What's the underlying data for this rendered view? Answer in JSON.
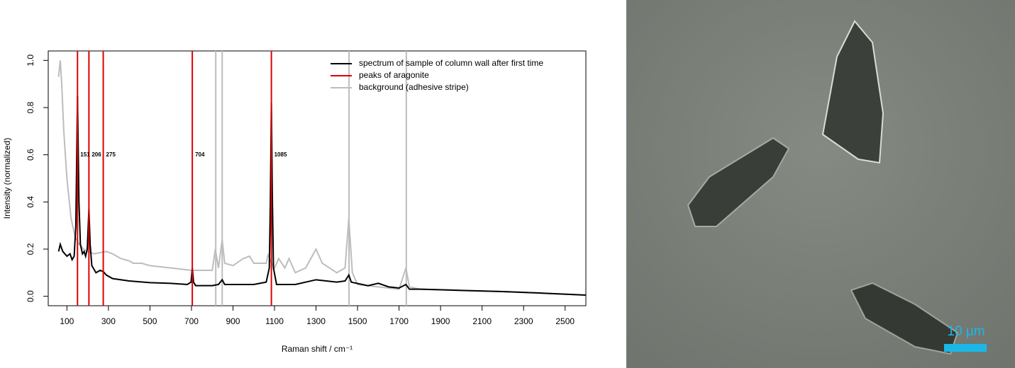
{
  "chart_data": {
    "type": "line",
    "xlabel": "Raman shift / cm⁻¹",
    "ylabel": "Intensity (normalized)",
    "xlim": [
      10,
      2600
    ],
    "ylim": [
      -0.04,
      1.04
    ],
    "xticks": [
      100,
      300,
      500,
      700,
      900,
      1100,
      1300,
      1500,
      1700,
      1900,
      2100,
      2300,
      2500
    ],
    "yticks": [
      {
        "value": 0,
        "label": "0.0"
      },
      0.2,
      0.4,
      0.6,
      0.8,
      {
        "value": 1,
        "label": "1.0"
      }
    ],
    "legend": "top-right",
    "series": [
      {
        "name": "spectrum of sample of column wall after first time",
        "color": "#000000",
        "x": [
          60,
          68,
          80,
          100,
          115,
          125,
          135,
          143,
          151,
          158,
          165,
          175,
          183,
          190,
          198,
          206,
          212,
          220,
          240,
          260,
          275,
          290,
          320,
          400,
          500,
          600,
          680,
          698,
          704,
          710,
          720,
          800,
          830,
          848,
          860,
          900,
          1000,
          1060,
          1075,
          1080,
          1085,
          1090,
          1095,
          1110,
          1200,
          1300,
          1400,
          1440,
          1458,
          1470,
          1550,
          1600,
          1650,
          1700,
          1733,
          1750,
          1800,
          2000,
          2200,
          2400,
          2600
        ],
        "values": [
          0.19,
          0.22,
          0.19,
          0.17,
          0.18,
          0.155,
          0.17,
          0.3,
          0.85,
          0.4,
          0.22,
          0.18,
          0.19,
          0.17,
          0.2,
          0.37,
          0.22,
          0.13,
          0.1,
          0.11,
          0.105,
          0.09,
          0.075,
          0.065,
          0.058,
          0.055,
          0.05,
          0.06,
          0.12,
          0.06,
          0.045,
          0.045,
          0.05,
          0.07,
          0.05,
          0.05,
          0.05,
          0.06,
          0.12,
          0.4,
          0.82,
          0.4,
          0.12,
          0.05,
          0.05,
          0.07,
          0.06,
          0.065,
          0.09,
          0.06,
          0.045,
          0.055,
          0.04,
          0.035,
          0.05,
          0.03,
          0.03,
          0.025,
          0.02,
          0.013,
          0.005
        ]
      },
      {
        "name": "peaks of aragonite",
        "color": "#e00000",
        "type": "vline",
        "x": [
          151,
          206,
          275,
          704,
          1085
        ],
        "label_y": 0.6
      },
      {
        "name": "background (adhesive stripe)",
        "color": "#bdbdbd",
        "x": [
          60,
          68,
          75,
          85,
          100,
          120,
          140,
          160,
          180,
          200,
          230,
          260,
          290,
          320,
          360,
          400,
          420,
          460,
          500,
          600,
          700,
          800,
          815,
          830,
          848,
          860,
          900,
          950,
          980,
          1000,
          1060,
          1070,
          1080,
          1100,
          1120,
          1150,
          1170,
          1200,
          1250,
          1300,
          1330,
          1400,
          1440,
          1458,
          1475,
          1500,
          1600,
          1700,
          1733,
          1750,
          1800,
          2000,
          2200,
          2400,
          2600
        ],
        "values": [
          0.93,
          1.0,
          0.9,
          0.7,
          0.5,
          0.33,
          0.25,
          0.22,
          0.2,
          0.19,
          0.18,
          0.185,
          0.19,
          0.18,
          0.16,
          0.15,
          0.14,
          0.14,
          0.13,
          0.12,
          0.11,
          0.11,
          0.2,
          0.12,
          0.24,
          0.14,
          0.13,
          0.16,
          0.17,
          0.14,
          0.14,
          0.18,
          0.15,
          0.12,
          0.16,
          0.12,
          0.16,
          0.1,
          0.12,
          0.2,
          0.14,
          0.1,
          0.12,
          0.33,
          0.1,
          0.05,
          0.04,
          0.03,
          0.12,
          0.04,
          0.03,
          0.025,
          0.02,
          0.013,
          0.005
        ],
        "peaks": [
          817,
          848,
          1459,
          1735
        ]
      }
    ]
  },
  "image": {
    "scale_label": "10 µm"
  }
}
